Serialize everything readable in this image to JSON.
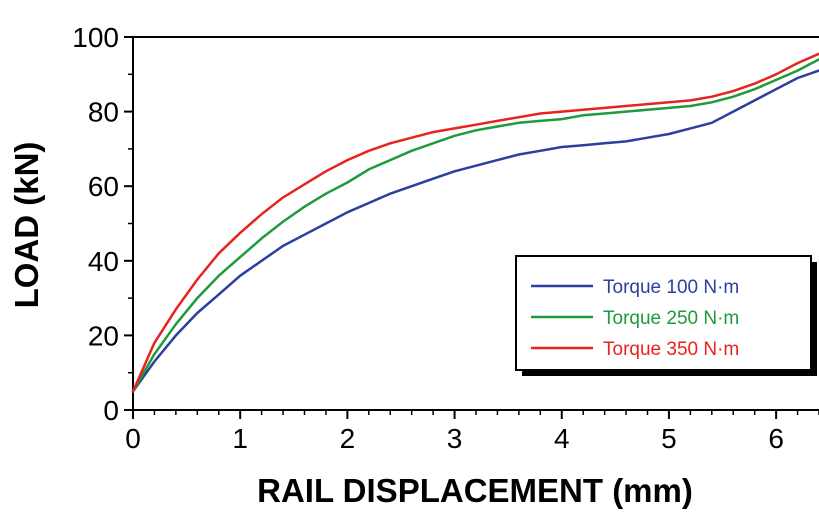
{
  "chart_data": {
    "type": "line",
    "xlabel": "RAIL DISPLACEMENT (mm)",
    "ylabel": "LOAD (kN)",
    "xlim": [
      0,
      6.4
    ],
    "ylim": [
      0,
      100
    ],
    "x_ticks": [
      0,
      1,
      2,
      3,
      4,
      5,
      6
    ],
    "y_ticks": [
      0,
      20,
      40,
      60,
      80,
      100
    ],
    "grid": false,
    "legend_position": "lower-right",
    "series": [
      {
        "name": "Torque 100 N·m",
        "color": "#2b3f9e",
        "x": [
          0,
          0.2,
          0.4,
          0.6,
          0.8,
          1.0,
          1.2,
          1.4,
          1.6,
          1.8,
          2.0,
          2.2,
          2.4,
          2.6,
          2.8,
          3.0,
          3.2,
          3.4,
          3.6,
          3.8,
          4.0,
          4.2,
          4.4,
          4.6,
          4.8,
          5.0,
          5.2,
          5.4,
          5.6,
          5.8,
          6.0,
          6.2,
          6.4
        ],
        "y": [
          5,
          13,
          20,
          26,
          31,
          36,
          40,
          44,
          47,
          50,
          53,
          55.5,
          58,
          60,
          62,
          64,
          65.5,
          67,
          68.5,
          69.5,
          70.5,
          71,
          71.5,
          72,
          73,
          74,
          75.5,
          77,
          80,
          83,
          86,
          89,
          91
        ]
      },
      {
        "name": "Torque 250 N·m",
        "color": "#1f9a3c",
        "x": [
          0,
          0.2,
          0.4,
          0.6,
          0.8,
          1.0,
          1.2,
          1.4,
          1.6,
          1.8,
          2.0,
          2.2,
          2.4,
          2.6,
          2.8,
          3.0,
          3.2,
          3.4,
          3.6,
          3.8,
          4.0,
          4.2,
          4.4,
          4.6,
          4.8,
          5.0,
          5.2,
          5.4,
          5.6,
          5.8,
          6.0,
          6.2,
          6.4
        ],
        "y": [
          5,
          15,
          23,
          30,
          36,
          41,
          46,
          50.5,
          54.5,
          58,
          61,
          64.5,
          67,
          69.5,
          71.5,
          73.5,
          75,
          76,
          77,
          77.5,
          78,
          79,
          79.5,
          80,
          80.5,
          81,
          81.5,
          82.5,
          84,
          86,
          88.5,
          91,
          94
        ]
      },
      {
        "name": "Torque 350 N·m",
        "color": "#e8231e",
        "x": [
          0,
          0.2,
          0.4,
          0.6,
          0.8,
          1.0,
          1.2,
          1.4,
          1.6,
          1.8,
          2.0,
          2.2,
          2.4,
          2.6,
          2.8,
          3.0,
          3.2,
          3.4,
          3.6,
          3.8,
          4.0,
          4.2,
          4.4,
          4.6,
          4.8,
          5.0,
          5.2,
          5.4,
          5.6,
          5.8,
          6.0,
          6.2,
          6.4
        ],
        "y": [
          5,
          18,
          27,
          35,
          42,
          47.5,
          52.5,
          57,
          60.5,
          64,
          67,
          69.5,
          71.5,
          73,
          74.5,
          75.5,
          76.5,
          77.5,
          78.5,
          79.5,
          80,
          80.5,
          81,
          81.5,
          82,
          82.5,
          83,
          84,
          85.5,
          87.5,
          90,
          93,
          95.5
        ]
      }
    ]
  }
}
